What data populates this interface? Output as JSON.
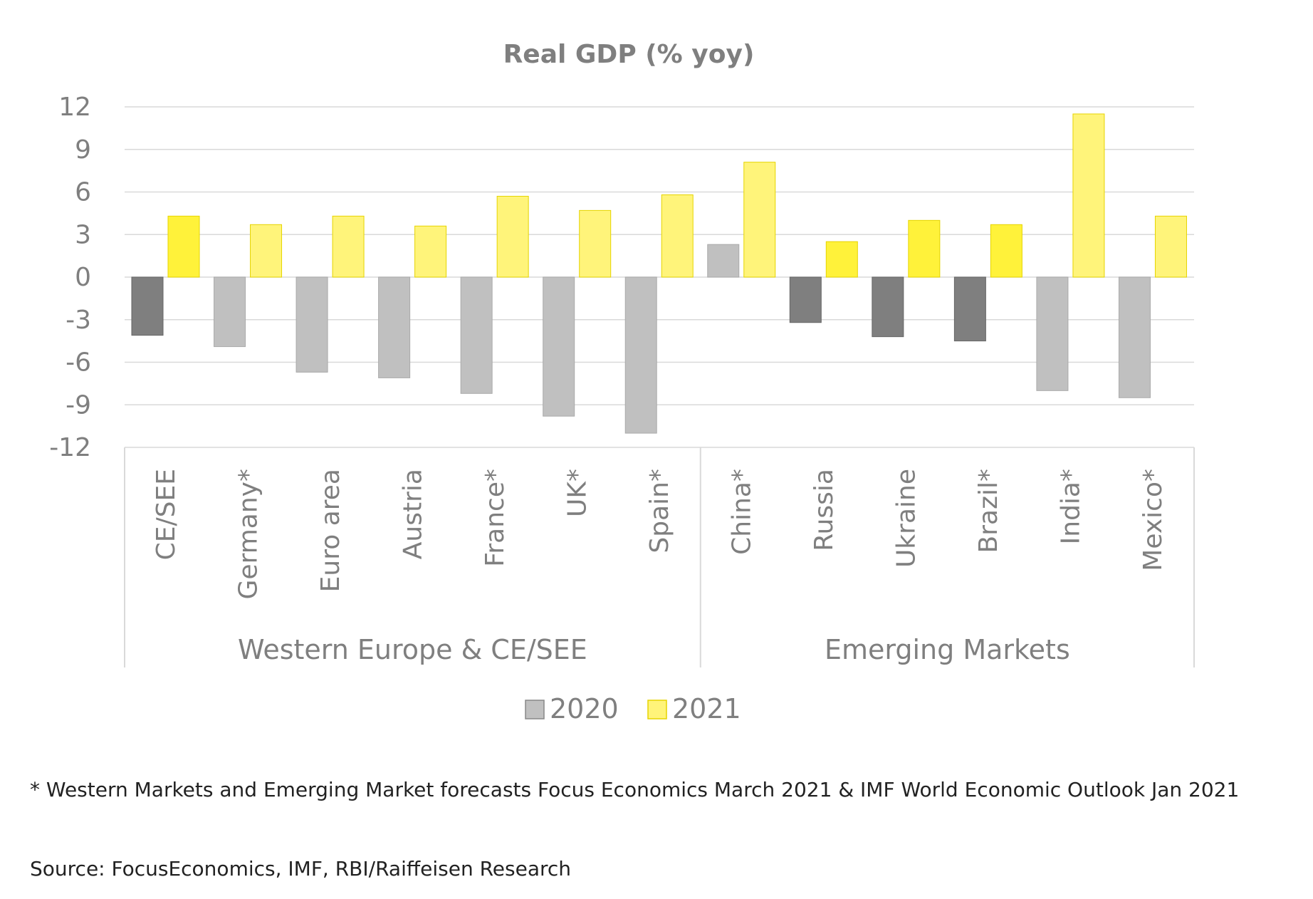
{
  "chart_data": {
    "type": "bar",
    "title": "Real GDP (% yoy)",
    "categories": [
      "CE/SEE",
      "Germany*",
      "Euro area",
      "Austria",
      "France*",
      "UK*",
      "Spain*",
      "China*",
      "Russia",
      "Ukraine",
      "Brazil*",
      "India*",
      "Mexico*"
    ],
    "groups": [
      {
        "label": "Western Europe & CE/SEE",
        "categories": [
          "CE/SEE",
          "Germany*",
          "Euro area",
          "Austria",
          "France*",
          "UK*",
          "Spain*"
        ]
      },
      {
        "label": "Emerging Markets",
        "categories": [
          "China*",
          "Russia",
          "Ukraine",
          "Brazil*",
          "India*",
          "Mexico*"
        ]
      }
    ],
    "series": [
      {
        "name": "2020",
        "values": [
          -4.1,
          -4.9,
          -6.7,
          -7.1,
          -8.2,
          -9.8,
          -11.0,
          2.3,
          -3.2,
          -4.2,
          -4.5,
          -8.0,
          -8.5
        ]
      },
      {
        "name": "2021",
        "values": [
          4.3,
          3.7,
          4.3,
          3.6,
          5.7,
          4.7,
          5.8,
          8.1,
          2.5,
          4.0,
          3.7,
          11.5,
          4.3
        ]
      }
    ],
    "highlighted_categories": [
      "CE/SEE",
      "Russia",
      "Ukraine",
      "Brazil*"
    ],
    "ylim": [
      -12,
      12
    ],
    "yticks": [
      12,
      9,
      6,
      3,
      0,
      -3,
      -6,
      -9,
      -12
    ],
    "grid": true,
    "legend": "bottom-center",
    "colors": {
      "s2020": "#c0c0c0",
      "s2020_highlight": "#7f7f7f",
      "s2021": "#fff47a",
      "s2021_highlight": "#fff23a",
      "grid": "#d9d9d9",
      "text": "#7f7f7f"
    }
  },
  "footnote": "* Western Markets and Emerging Market forecasts Focus Economics March 2021 & IMF World Economic Outlook Jan 2021",
  "source": "Source: FocusEconomics, IMF, RBI/Raiffeisen Research"
}
